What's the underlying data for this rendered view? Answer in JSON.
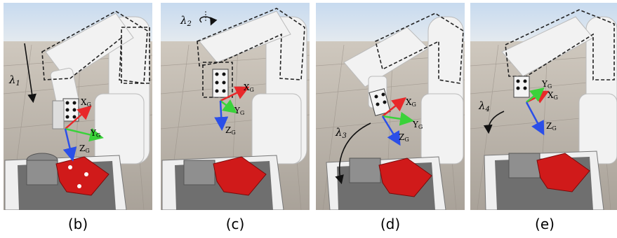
{
  "panels": [
    {
      "id": "b",
      "caption": "(b)",
      "lambda": "λ",
      "lambda_sub": "1",
      "axes": {
        "x": "X",
        "y": "Y",
        "z": "Z",
        "sub": "G"
      }
    },
    {
      "id": "c",
      "caption": "(c)",
      "lambda": "λ",
      "lambda_sub": "2",
      "axes": {
        "x": "X",
        "y": "Y",
        "z": "Z",
        "sub": "G"
      }
    },
    {
      "id": "d",
      "caption": "(d)",
      "lambda": "λ",
      "lambda_sub": "3",
      "axes": {
        "x": "X",
        "y": "Y",
        "z": "Z",
        "sub": "G"
      }
    },
    {
      "id": "e",
      "caption": "(e)",
      "lambda": "λ",
      "lambda_sub": "4",
      "axes": {
        "x": "X",
        "y": "Y",
        "z": "Z",
        "sub": "G"
      }
    }
  ],
  "colors": {
    "x_axis": "#e8282a",
    "y_axis": "#3ad23a",
    "z_axis": "#2b4fe8",
    "object": "#d01a1a",
    "sky": "#cfe0f0",
    "floor": "#bdb6ac"
  }
}
